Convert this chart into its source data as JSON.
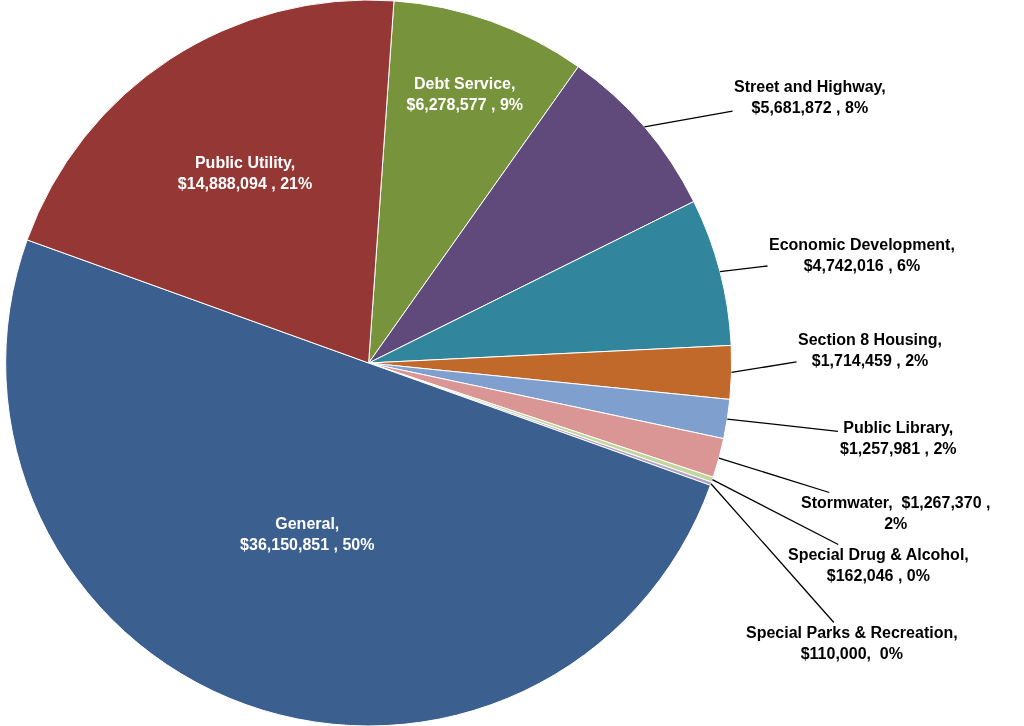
{
  "chart_data": {
    "type": "pie",
    "categories": [
      "Debt Service",
      "Street and Highway",
      "Economic Development",
      "Section 8 Housing",
      "Public Library",
      "Stormwater",
      "Special Drug & Alcohol",
      "Special Parks & Recreation",
      "General",
      "Public Utility"
    ],
    "values": [
      6278577,
      5681872,
      4742016,
      1714459,
      1257981,
      1267370,
      162046,
      110000,
      36150851,
      14888094
    ],
    "colors": [
      "#77933c",
      "#604a7b",
      "#31859c",
      "#c0692a",
      "#7f9fcf",
      "#d99694",
      "#c3d69b",
      "#b3a2c7",
      "#3b5f8f",
      "#953735"
    ],
    "value_labels": [
      ",\n$6,278,577 , 9%",
      ",\n$5,681,872 , 8%",
      ",\n$4,742,016 , 6%",
      ",\n$1,714,459 , 2%",
      ",\n$1,257,981 , 2%",
      ",  $1,267,370 ,\n2%",
      ",\n$162,046 , 0%",
      ",\n$110,000,  0%",
      ",\n$36,150,851 , 50%",
      ",\n$14,888,094 , 21%"
    ],
    "legend": false
  }
}
